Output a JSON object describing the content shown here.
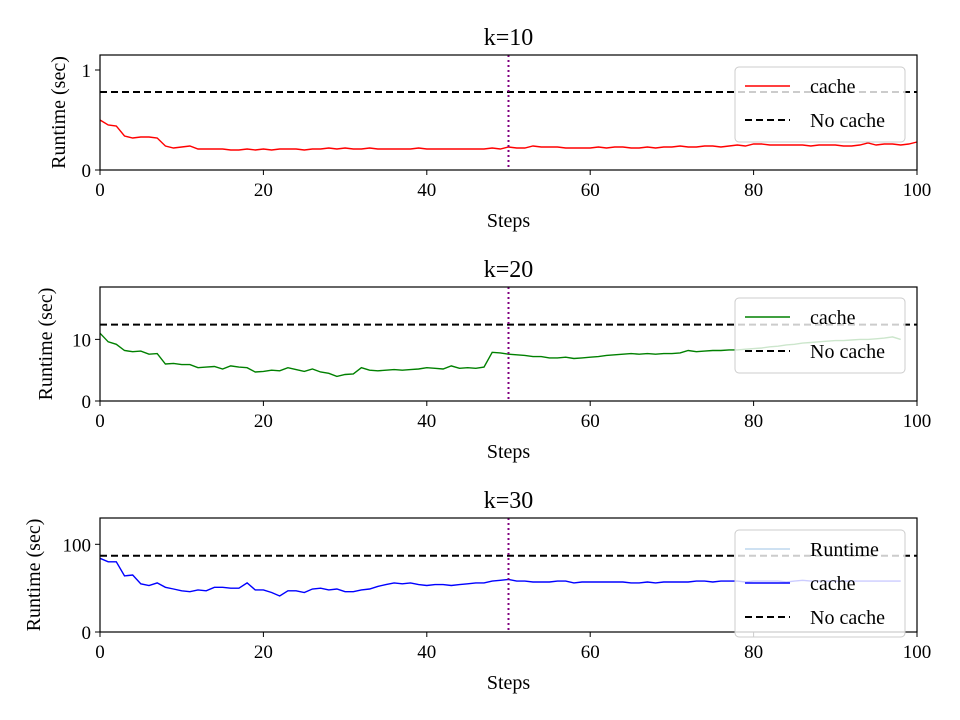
{
  "chart_data": [
    {
      "type": "line",
      "title": "k=10",
      "xlabel": "Steps",
      "ylabel": "Runtime (sec)",
      "xlim": [
        0,
        100
      ],
      "ylim": [
        0,
        1.15
      ],
      "xticks": [
        "0",
        "20",
        "40",
        "60",
        "80",
        "100"
      ],
      "yticks": [
        "0",
        "1"
      ],
      "xtick_values": [
        0,
        20,
        40,
        60,
        80,
        100
      ],
      "ytick_values": [
        0,
        1
      ],
      "vline_x": 50,
      "legend": [
        "cache",
        "No cache"
      ],
      "legend_position": "upper right",
      "series": [
        {
          "name": "cache",
          "color": "#ff0000",
          "x": [
            0,
            1,
            2,
            3,
            4,
            5,
            6,
            7,
            8,
            9,
            10,
            11,
            12,
            13,
            14,
            15,
            16,
            17,
            18,
            19,
            20,
            21,
            22,
            23,
            24,
            25,
            26,
            27,
            28,
            29,
            30,
            31,
            32,
            33,
            34,
            35,
            36,
            37,
            38,
            39,
            40,
            41,
            42,
            43,
            44,
            45,
            46,
            47,
            48,
            49,
            50,
            51,
            52,
            53,
            54,
            55,
            56,
            57,
            58,
            59,
            60,
            61,
            62,
            63,
            64,
            65,
            66,
            67,
            68,
            69,
            70,
            71,
            72,
            73,
            74,
            75,
            76,
            77,
            78,
            79,
            80,
            81,
            82,
            83,
            84,
            85,
            86,
            87,
            88,
            89,
            90,
            91,
            92,
            93,
            94,
            95,
            96,
            97,
            98,
            99,
            100
          ],
          "y": [
            0.5,
            0.45,
            0.44,
            0.34,
            0.32,
            0.33,
            0.33,
            0.32,
            0.24,
            0.22,
            0.23,
            0.24,
            0.21,
            0.21,
            0.21,
            0.21,
            0.2,
            0.2,
            0.21,
            0.2,
            0.21,
            0.2,
            0.21,
            0.21,
            0.21,
            0.2,
            0.21,
            0.21,
            0.22,
            0.21,
            0.22,
            0.21,
            0.21,
            0.22,
            0.21,
            0.21,
            0.21,
            0.21,
            0.21,
            0.22,
            0.21,
            0.21,
            0.21,
            0.21,
            0.21,
            0.21,
            0.21,
            0.21,
            0.22,
            0.21,
            0.23,
            0.22,
            0.22,
            0.24,
            0.23,
            0.23,
            0.23,
            0.22,
            0.22,
            0.22,
            0.22,
            0.23,
            0.22,
            0.23,
            0.23,
            0.22,
            0.22,
            0.23,
            0.22,
            0.23,
            0.23,
            0.24,
            0.23,
            0.23,
            0.24,
            0.24,
            0.23,
            0.24,
            0.25,
            0.24,
            0.26,
            0.26,
            0.25,
            0.25,
            0.25,
            0.25,
            0.25,
            0.24,
            0.25,
            0.25,
            0.25,
            0.24,
            0.24,
            0.25,
            0.27,
            0.25,
            0.26,
            0.26,
            0.25,
            0.26,
            0.28
          ]
        },
        {
          "name": "No cache",
          "color": "#000000",
          "dashed": true,
          "x": [
            0,
            100
          ],
          "y": [
            0.78,
            0.78
          ]
        }
      ]
    },
    {
      "type": "line",
      "title": "k=20",
      "xlabel": "Steps",
      "ylabel": "Runtime (sec)",
      "xlim": [
        0,
        100
      ],
      "ylim": [
        0,
        18.5
      ],
      "xticks": [
        "0",
        "20",
        "40",
        "60",
        "80",
        "100"
      ],
      "yticks": [
        "0",
        "10"
      ],
      "xtick_values": [
        0,
        20,
        40,
        60,
        80,
        100
      ],
      "ytick_values": [
        0,
        10
      ],
      "vline_x": 50,
      "legend": [
        "cache",
        "No cache"
      ],
      "legend_position": "upper right",
      "series": [
        {
          "name": "cache",
          "color": "#008000",
          "x": [
            0,
            1,
            2,
            3,
            4,
            5,
            6,
            7,
            8,
            9,
            10,
            11,
            12,
            13,
            14,
            15,
            16,
            17,
            18,
            19,
            20,
            21,
            22,
            23,
            24,
            25,
            26,
            27,
            28,
            29,
            30,
            31,
            32,
            33,
            34,
            35,
            36,
            37,
            38,
            39,
            40,
            41,
            42,
            43,
            44,
            45,
            46,
            47,
            48,
            49,
            50,
            51,
            52,
            53,
            54,
            55,
            56,
            57,
            58,
            59,
            60,
            61,
            62,
            63,
            64,
            65,
            66,
            67,
            68,
            69,
            70,
            71,
            72,
            73,
            74,
            75,
            76,
            77,
            78,
            79,
            80,
            81,
            82,
            83,
            84,
            85,
            86,
            87,
            88,
            89,
            90,
            91,
            92,
            93,
            94,
            95,
            96,
            97,
            98
          ],
          "y": [
            11.0,
            9.6,
            9.2,
            8.2,
            8.0,
            8.1,
            7.6,
            7.7,
            6.0,
            6.1,
            5.9,
            5.9,
            5.4,
            5.5,
            5.6,
            5.2,
            5.7,
            5.5,
            5.4,
            4.7,
            4.8,
            5.0,
            4.9,
            5.4,
            5.1,
            4.8,
            5.2,
            4.7,
            4.5,
            4.0,
            4.3,
            4.4,
            5.4,
            5.0,
            4.9,
            5.0,
            5.1,
            5.0,
            5.1,
            5.2,
            5.4,
            5.3,
            5.2,
            5.7,
            5.3,
            5.4,
            5.3,
            5.5,
            7.9,
            7.8,
            7.6,
            7.5,
            7.4,
            7.2,
            7.2,
            7.0,
            7.0,
            7.1,
            6.9,
            7.0,
            7.1,
            7.2,
            7.4,
            7.5,
            7.6,
            7.7,
            7.6,
            7.7,
            7.6,
            7.7,
            7.7,
            7.8,
            8.2,
            8.0,
            8.1,
            8.2,
            8.2,
            8.3,
            8.3,
            8.4,
            8.5,
            8.6,
            8.8,
            8.9,
            9.1,
            9.2,
            9.4,
            9.5,
            9.6,
            9.7,
            9.8,
            9.8,
            9.9,
            10.0,
            10.0,
            10.1,
            10.2,
            10.4,
            10.0
          ]
        },
        {
          "name": "No cache",
          "color": "#000000",
          "dashed": true,
          "x": [
            0,
            100
          ],
          "y": [
            12.4,
            12.4
          ]
        }
      ]
    },
    {
      "type": "line",
      "title": "k=30",
      "xlabel": "Steps",
      "ylabel": "Runtime (sec)",
      "xlim": [
        0,
        100
      ],
      "ylim": [
        0,
        130
      ],
      "xticks": [
        "0",
        "20",
        "40",
        "60",
        "80",
        "100"
      ],
      "yticks": [
        "0",
        "100"
      ],
      "xtick_values": [
        0,
        20,
        40,
        60,
        80,
        100
      ],
      "ytick_values": [
        0,
        100
      ],
      "vline_x": 50,
      "legend": [
        "Runtime",
        "cache",
        "No cache"
      ],
      "legend_position": "upper right",
      "series": [
        {
          "name": "Runtime",
          "color": "#9ec3e6",
          "legend_only": true,
          "x": [],
          "y": []
        },
        {
          "name": "cache",
          "color": "#0000ff",
          "x": [
            0,
            1,
            2,
            3,
            4,
            5,
            6,
            7,
            8,
            9,
            10,
            11,
            12,
            13,
            14,
            15,
            16,
            17,
            18,
            19,
            20,
            21,
            22,
            23,
            24,
            25,
            26,
            27,
            28,
            29,
            30,
            31,
            32,
            33,
            34,
            35,
            36,
            37,
            38,
            39,
            40,
            41,
            42,
            43,
            44,
            45,
            46,
            47,
            48,
            49,
            50,
            51,
            52,
            53,
            54,
            55,
            56,
            57,
            58,
            59,
            60,
            61,
            62,
            63,
            64,
            65,
            66,
            67,
            68,
            69,
            70,
            71,
            72,
            73,
            74,
            75,
            76,
            77,
            78,
            79,
            80,
            81,
            82,
            83,
            84,
            85,
            86,
            87,
            88,
            89,
            90,
            91,
            92,
            93,
            94,
            95,
            96,
            97,
            98
          ],
          "y": [
            84,
            80,
            80,
            64,
            65,
            55,
            53,
            56,
            51,
            49,
            47,
            46,
            48,
            47,
            51,
            51,
            50,
            50,
            56,
            48,
            48,
            45,
            41,
            47,
            47,
            45,
            49,
            50,
            48,
            49,
            46,
            46,
            48,
            49,
            52,
            54,
            56,
            55,
            56,
            54,
            53,
            54,
            54,
            53,
            54,
            55,
            56,
            56,
            58,
            59,
            60,
            58,
            58,
            57,
            57,
            57,
            58,
            58,
            56,
            57,
            57,
            57,
            57,
            57,
            57,
            56,
            56,
            57,
            56,
            57,
            57,
            57,
            57,
            58,
            58,
            57,
            58,
            58,
            58,
            57,
            58,
            58,
            58,
            58,
            57,
            58,
            59,
            58,
            58,
            58,
            58,
            58,
            58,
            58,
            58,
            58,
            58,
            58,
            58
          ]
        },
        {
          "name": "No cache",
          "color": "#000000",
          "dashed": true,
          "x": [
            0,
            100
          ],
          "y": [
            87,
            87
          ]
        }
      ]
    }
  ]
}
